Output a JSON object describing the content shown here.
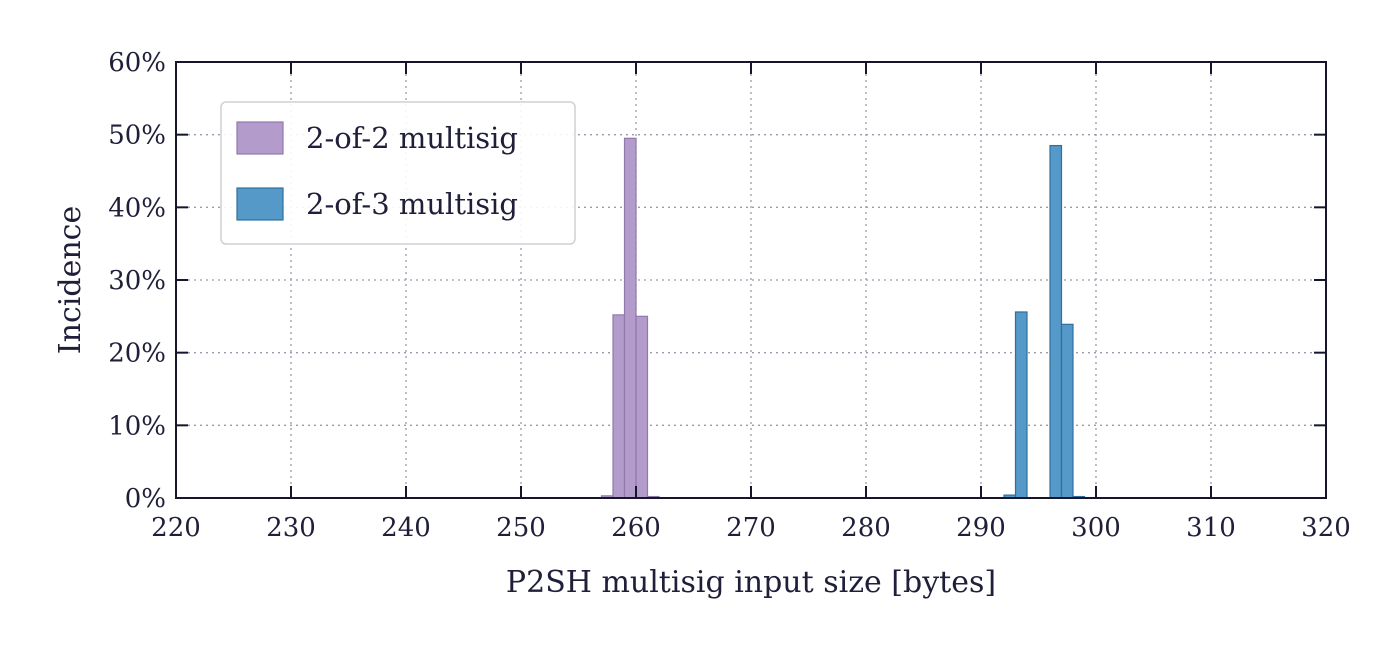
{
  "chart_data": {
    "type": "bar",
    "xlabel": "P2SH multisig input size [bytes]",
    "ylabel": "Incidence",
    "xlim": [
      220,
      320
    ],
    "ylim": [
      0,
      60
    ],
    "x_ticks": [
      220,
      230,
      240,
      250,
      260,
      270,
      280,
      290,
      300,
      310,
      320
    ],
    "y_ticks": [
      0,
      10,
      20,
      30,
      40,
      50,
      60
    ],
    "y_tick_labels": [
      "0%",
      "10%",
      "20%",
      "30%",
      "40%",
      "50%",
      "60%"
    ],
    "grid": true,
    "legend_position": "top-left",
    "bin_width": 1,
    "series": [
      {
        "name": "2-of-2 multisig",
        "color": "#b39ccc",
        "edge_color": "#8f7aab",
        "bins": [
          {
            "x": 257,
            "value": 0.3
          },
          {
            "x": 258,
            "value": 25.2
          },
          {
            "x": 259,
            "value": 49.5
          },
          {
            "x": 260,
            "value": 25.0
          },
          {
            "x": 261,
            "value": 0.2
          }
        ]
      },
      {
        "name": "2-of-3 multisig",
        "color": "#5599c9",
        "edge_color": "#2f6f9e",
        "bins": [
          {
            "x": 292,
            "value": 0.4
          },
          {
            "x": 293,
            "value": 25.6
          },
          {
            "x": 296,
            "value": 48.5
          },
          {
            "x": 297,
            "value": 23.9
          },
          {
            "x": 298,
            "value": 0.2
          }
        ]
      }
    ]
  }
}
